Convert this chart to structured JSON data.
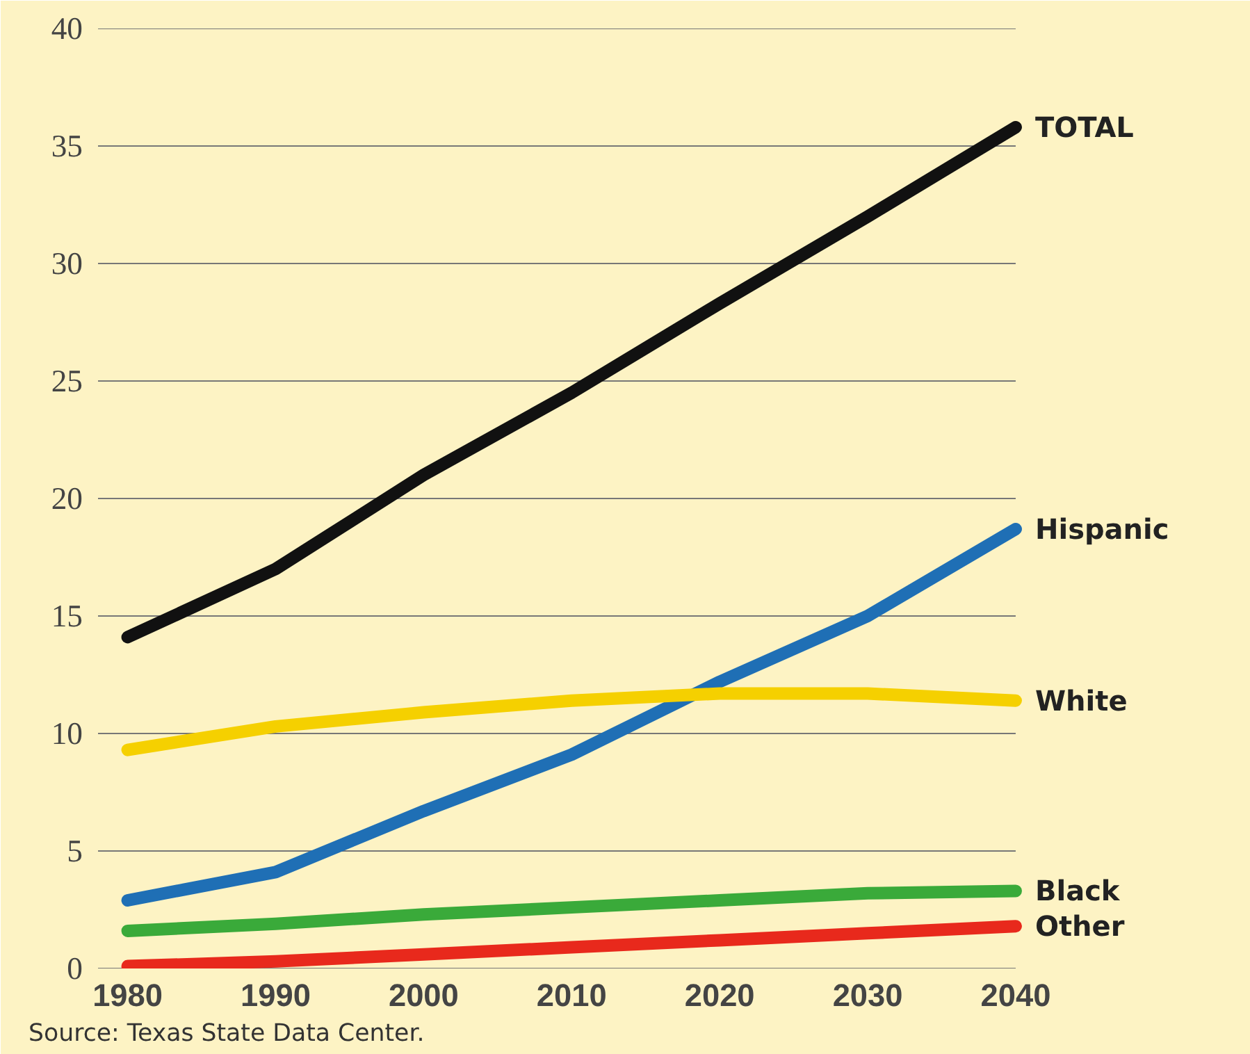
{
  "chart_data": {
    "type": "line",
    "x": [
      1980,
      1990,
      2000,
      2010,
      2020,
      2030,
      2040
    ],
    "series": [
      {
        "name": "TOTAL",
        "color": "#111111",
        "values": [
          14.1,
          17.0,
          21.0,
          24.5,
          28.3,
          32.0,
          35.8
        ]
      },
      {
        "name": "Hispanic",
        "color": "#1f6fb5",
        "values": [
          2.9,
          4.1,
          6.7,
          9.1,
          12.2,
          15.0,
          18.7
        ]
      },
      {
        "name": "White",
        "color": "#f5d000",
        "values": [
          9.3,
          10.3,
          10.9,
          11.4,
          11.7,
          11.7,
          11.4
        ]
      },
      {
        "name": "Black",
        "color": "#3aaa3a",
        "values": [
          1.6,
          1.9,
          2.3,
          2.6,
          2.9,
          3.2,
          3.3
        ]
      },
      {
        "name": "Other",
        "color": "#e8291c",
        "values": [
          0.1,
          0.3,
          0.6,
          0.9,
          1.2,
          1.5,
          1.8
        ]
      }
    ],
    "xlim": [
      1978,
      2054
    ],
    "xticks": [
      1980,
      1990,
      2000,
      2010,
      2020,
      2030,
      2040
    ],
    "ylim": [
      0,
      40
    ],
    "yticks": [
      0,
      5,
      10,
      15,
      20,
      25,
      30,
      35,
      40
    ],
    "grid": "y",
    "legend": false,
    "marker": "none",
    "line_style": "solid",
    "annotations": [
      "Source: Texas State Data Center."
    ]
  }
}
